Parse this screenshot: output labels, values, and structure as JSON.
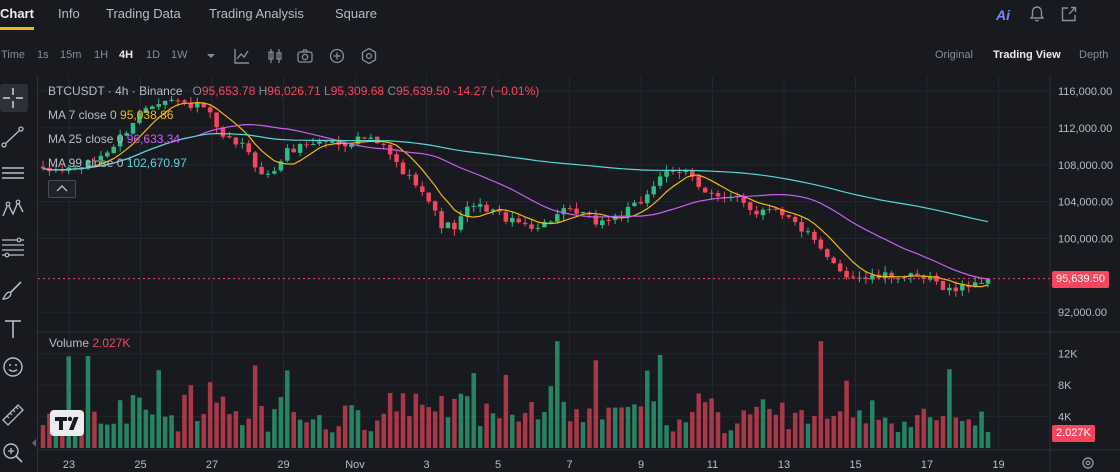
{
  "tabs": [
    {
      "label": "Chart",
      "active": true
    },
    {
      "label": "Info",
      "active": false
    },
    {
      "label": "Trading Data",
      "active": false
    },
    {
      "label": "Trading Analysis",
      "active": false
    },
    {
      "label": "Square",
      "active": false
    }
  ],
  "top_icons": {
    "ai_label": "Ai",
    "icons": [
      "bell-icon",
      "share-icon"
    ]
  },
  "toolbar": {
    "time_label": "Time",
    "intervals": [
      {
        "label": "1s",
        "active": false
      },
      {
        "label": "15m",
        "active": false
      },
      {
        "label": "1H",
        "active": false
      },
      {
        "label": "4H",
        "active": true
      },
      {
        "label": "1D",
        "active": false
      },
      {
        "label": "1W",
        "active": false
      }
    ],
    "views": [
      {
        "label": "Original",
        "active": false
      },
      {
        "label": "Trading View",
        "active": true
      },
      {
        "label": "Depth",
        "active": false
      }
    ]
  },
  "legend": {
    "symbol": "BTCUSDT · 4h · Binance",
    "open_key": "O",
    "open": "95,653.78",
    "high_key": "H",
    "high": "96,026.71",
    "low_key": "L",
    "low": "95,309.68",
    "close_key": "C",
    "close": "95,639.50",
    "change": "-14.27 (−0.01%)",
    "ma": [
      {
        "label": "MA 7 close 0",
        "value": "95,038.86",
        "color": "#f0b90b"
      },
      {
        "label": "MA 25 close 0",
        "value": "96,633.34",
        "color": "#c760f0"
      },
      {
        "label": "MA 99 close 0",
        "value": "102,670.97",
        "color": "#53d7d7"
      }
    ]
  },
  "volume_legend": {
    "label": "Volume",
    "value": "2.027K"
  },
  "colors": {
    "up": "#2ebd85",
    "down": "#f6465d",
    "grid": "#2b3139",
    "text": "#848e9c",
    "accent": "#f0b90b"
  },
  "chart_data": {
    "type": "candlestick",
    "symbol": "BTCUSDT",
    "interval": "4h",
    "price_axis": {
      "ticks": [
        "116,000.00",
        "112,000.00",
        "108,000.00",
        "104,000.00",
        "100,000.00",
        "92,000.00"
      ],
      "ylim": [
        90500,
        117200
      ]
    },
    "current_price": {
      "value": 95639.5,
      "label": "95,639.50"
    },
    "volume_axis": {
      "ticks": [
        "12K",
        "8K",
        "4K"
      ],
      "max": 14000
    },
    "current_volume": "2.027K",
    "x_axis": {
      "ticks": [
        "23",
        "25",
        "27",
        "29",
        "Nov",
        "3",
        "5",
        "7",
        "9",
        "11",
        "13",
        "15",
        "17",
        "19"
      ]
    },
    "candle_count": 148,
    "close_path": [
      [
        0,
        107200
      ],
      [
        6,
        107900
      ],
      [
        10,
        110000
      ],
      [
        14,
        114000
      ],
      [
        17,
        115300
      ],
      [
        20,
        114600
      ],
      [
        23,
        114200
      ],
      [
        25,
        110800
      ],
      [
        28,
        110200
      ],
      [
        30,
        107800
      ],
      [
        32,
        106600
      ],
      [
        34,
        109300
      ],
      [
        37,
        110300
      ],
      [
        40,
        110600
      ],
      [
        42,
        110200
      ],
      [
        45,
        111000
      ],
      [
        48,
        109900
      ],
      [
        51,
        106800
      ],
      [
        53,
        106000
      ],
      [
        56,
        101500
      ],
      [
        58,
        101200
      ],
      [
        60,
        103500
      ],
      [
        63,
        103200
      ],
      [
        66,
        101800
      ],
      [
        70,
        101300
      ],
      [
        73,
        102900
      ],
      [
        76,
        102600
      ],
      [
        78,
        101700
      ],
      [
        81,
        102400
      ],
      [
        84,
        103800
      ],
      [
        87,
        107000
      ],
      [
        89,
        106900
      ],
      [
        91,
        107300
      ],
      [
        93,
        105200
      ],
      [
        96,
        104000
      ],
      [
        98,
        104700
      ],
      [
        100,
        102800
      ],
      [
        103,
        103500
      ],
      [
        106,
        101500
      ],
      [
        108,
        100200
      ],
      [
        110,
        98000
      ],
      [
        113,
        96100
      ],
      [
        116,
        95700
      ],
      [
        120,
        96000
      ],
      [
        125,
        95500
      ],
      [
        128,
        94300
      ],
      [
        131,
        95200
      ],
      [
        133,
        95640
      ]
    ],
    "ma_series": [
      {
        "name": "MA 7 close 0",
        "color": "#f0b90b",
        "window": 7
      },
      {
        "name": "MA 25 close 0",
        "color": "#c760f0",
        "window": 25
      },
      {
        "name": "MA 99 close 0",
        "color": "#53d7d7",
        "window": 99
      }
    ]
  }
}
